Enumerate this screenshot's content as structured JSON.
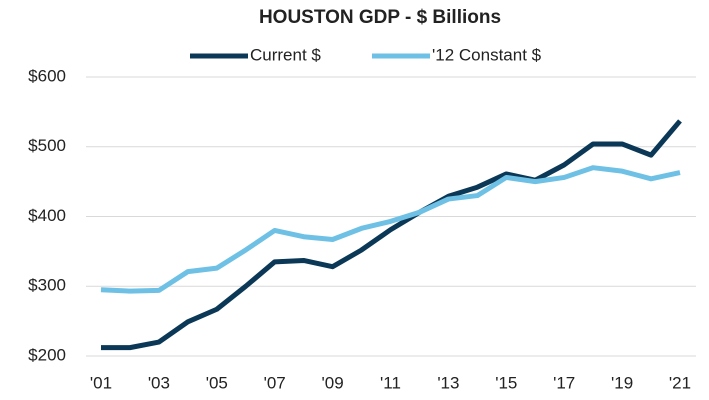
{
  "chart_data": {
    "type": "line",
    "title": "HOUSTON GDP - $ Billions",
    "categories": [
      "'01",
      null,
      "'03",
      null,
      "'05",
      null,
      "'07",
      null,
      "'09",
      null,
      "'11",
      null,
      "'13",
      null,
      "'15",
      null,
      "'17",
      null,
      "'19",
      null,
      "'21"
    ],
    "series": [
      {
        "name": "Current $",
        "color": "#0b3856",
        "values": [
          212,
          212,
          220,
          249,
          267,
          300,
          335,
          337,
          328,
          352,
          381,
          406,
          429,
          442,
          461,
          452,
          474,
          504,
          504,
          488,
          537
        ]
      },
      {
        "name": "'12 Constant $",
        "color": "#6ec1e4",
        "values": [
          295,
          293,
          294,
          321,
          326,
          352,
          380,
          371,
          367,
          383,
          393,
          406,
          425,
          430,
          456,
          450,
          456,
          470,
          465,
          454,
          463
        ]
      }
    ],
    "ylim": [
      200,
      600
    ],
    "yticks": [
      {
        "value": 200,
        "label": "$200"
      },
      {
        "value": 300,
        "label": "$300"
      },
      {
        "value": 400,
        "label": "$400"
      },
      {
        "value": 500,
        "label": "$500"
      },
      {
        "value": 600,
        "label": "$600"
      }
    ],
    "grid": true,
    "legend": "top"
  }
}
